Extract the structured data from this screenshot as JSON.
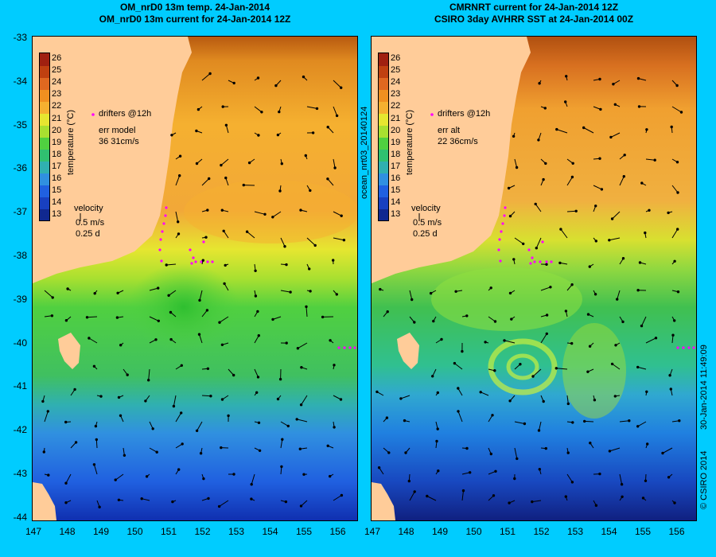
{
  "left_panel": {
    "title_line1": "OM_nrD0 13m temp. 24-Jan-2014",
    "title_line2": "OM_nrD0 13m current for 24-Jan-2014 12Z",
    "drifters_label": "drifters @12h",
    "err_label": "err model",
    "err_value": "36 31cm/s",
    "velocity_label": "velocity",
    "velocity_scale": "0.5 m/s",
    "velocity_time": "0.25 d",
    "colorbar_label": "temperature (°C)"
  },
  "right_panel": {
    "title_line1": "CMRNRT current for 24-Jan-2014 12Z",
    "title_line2": "CSIRO 3day AVHRR SST at 24-Jan-2014 00Z",
    "drifters_label": "drifters @12h",
    "err_label": "err alt",
    "err_value": "22 36cm/s",
    "velocity_label": "velocity",
    "velocity_scale": "0.5 m/s",
    "velocity_time": "0.25 d",
    "colorbar_label": "temperature (°C)",
    "side_label": "ocean_nrt03_20140124"
  },
  "footer": {
    "timestamp": "30-Jan-2014 11:49:09",
    "copyright": "© CSIRO 2014"
  },
  "axes": {
    "lat_ticks": [
      "-33",
      "-34",
      "-35",
      "-36",
      "-37",
      "-38",
      "-39",
      "-40",
      "-41",
      "-42",
      "-43",
      "-44"
    ],
    "lon_ticks": [
      "147",
      "148",
      "149",
      "150",
      "151",
      "152",
      "153",
      "154",
      "155",
      "156"
    ]
  },
  "colorbar": {
    "ticks": [
      "26",
      "25",
      "24",
      "23",
      "22",
      "21",
      "20",
      "19",
      "18",
      "17",
      "16",
      "15",
      "14",
      "13"
    ]
  },
  "colors": {
    "background": "#00ccff",
    "land": "#ffcc99",
    "drifters": "#ff00ff"
  }
}
